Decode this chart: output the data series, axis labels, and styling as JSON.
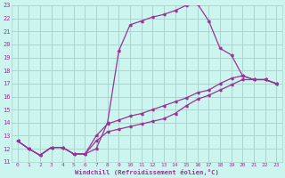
{
  "xlabel": "Windchill (Refroidissement éolien,°C)",
  "bg_color": "#cdf5ef",
  "grid_color": "#aad4cc",
  "line_color": "#993399",
  "xlim": [
    -0.5,
    23.5
  ],
  "ylim": [
    11,
    23
  ],
  "xticks": [
    0,
    1,
    2,
    3,
    4,
    5,
    6,
    7,
    8,
    9,
    10,
    11,
    12,
    13,
    14,
    15,
    16,
    17,
    18,
    19,
    20,
    21,
    22,
    23
  ],
  "yticks": [
    11,
    12,
    13,
    14,
    15,
    16,
    17,
    18,
    19,
    20,
    21,
    22,
    23
  ],
  "line1_x": [
    0,
    1,
    2,
    3,
    4,
    5,
    6,
    7,
    8,
    9,
    10,
    11,
    12,
    13,
    14,
    15,
    16,
    17,
    18,
    19,
    20,
    21,
    22,
    23
  ],
  "line1_y": [
    12.6,
    12.0,
    11.5,
    12.1,
    12.1,
    11.6,
    11.6,
    12.0,
    14.0,
    19.5,
    21.5,
    21.8,
    22.1,
    22.3,
    22.6,
    23.0,
    23.1,
    21.8,
    19.7,
    19.2,
    17.6,
    17.3,
    17.3,
    17.0
  ],
  "line2_x": [
    0,
    1,
    2,
    3,
    4,
    5,
    6,
    7,
    8,
    9,
    10,
    11,
    12,
    13,
    14,
    15,
    16,
    17,
    18,
    19,
    20,
    21,
    22,
    23
  ],
  "line2_y": [
    12.6,
    12.0,
    11.5,
    12.1,
    12.1,
    11.6,
    11.6,
    13.0,
    13.9,
    14.2,
    14.5,
    14.7,
    15.0,
    15.3,
    15.6,
    15.9,
    16.3,
    16.5,
    17.0,
    17.4,
    17.6,
    17.3,
    17.3,
    17.0
  ],
  "line3_x": [
    0,
    1,
    2,
    3,
    4,
    5,
    6,
    7,
    8,
    9,
    10,
    11,
    12,
    13,
    14,
    15,
    16,
    17,
    18,
    19,
    20,
    21,
    22,
    23
  ],
  "line3_y": [
    12.6,
    12.0,
    11.5,
    12.1,
    12.1,
    11.6,
    11.6,
    12.6,
    13.3,
    13.5,
    13.7,
    13.9,
    14.1,
    14.3,
    14.7,
    15.3,
    15.8,
    16.1,
    16.5,
    16.9,
    17.3,
    17.3,
    17.3,
    17.0
  ]
}
